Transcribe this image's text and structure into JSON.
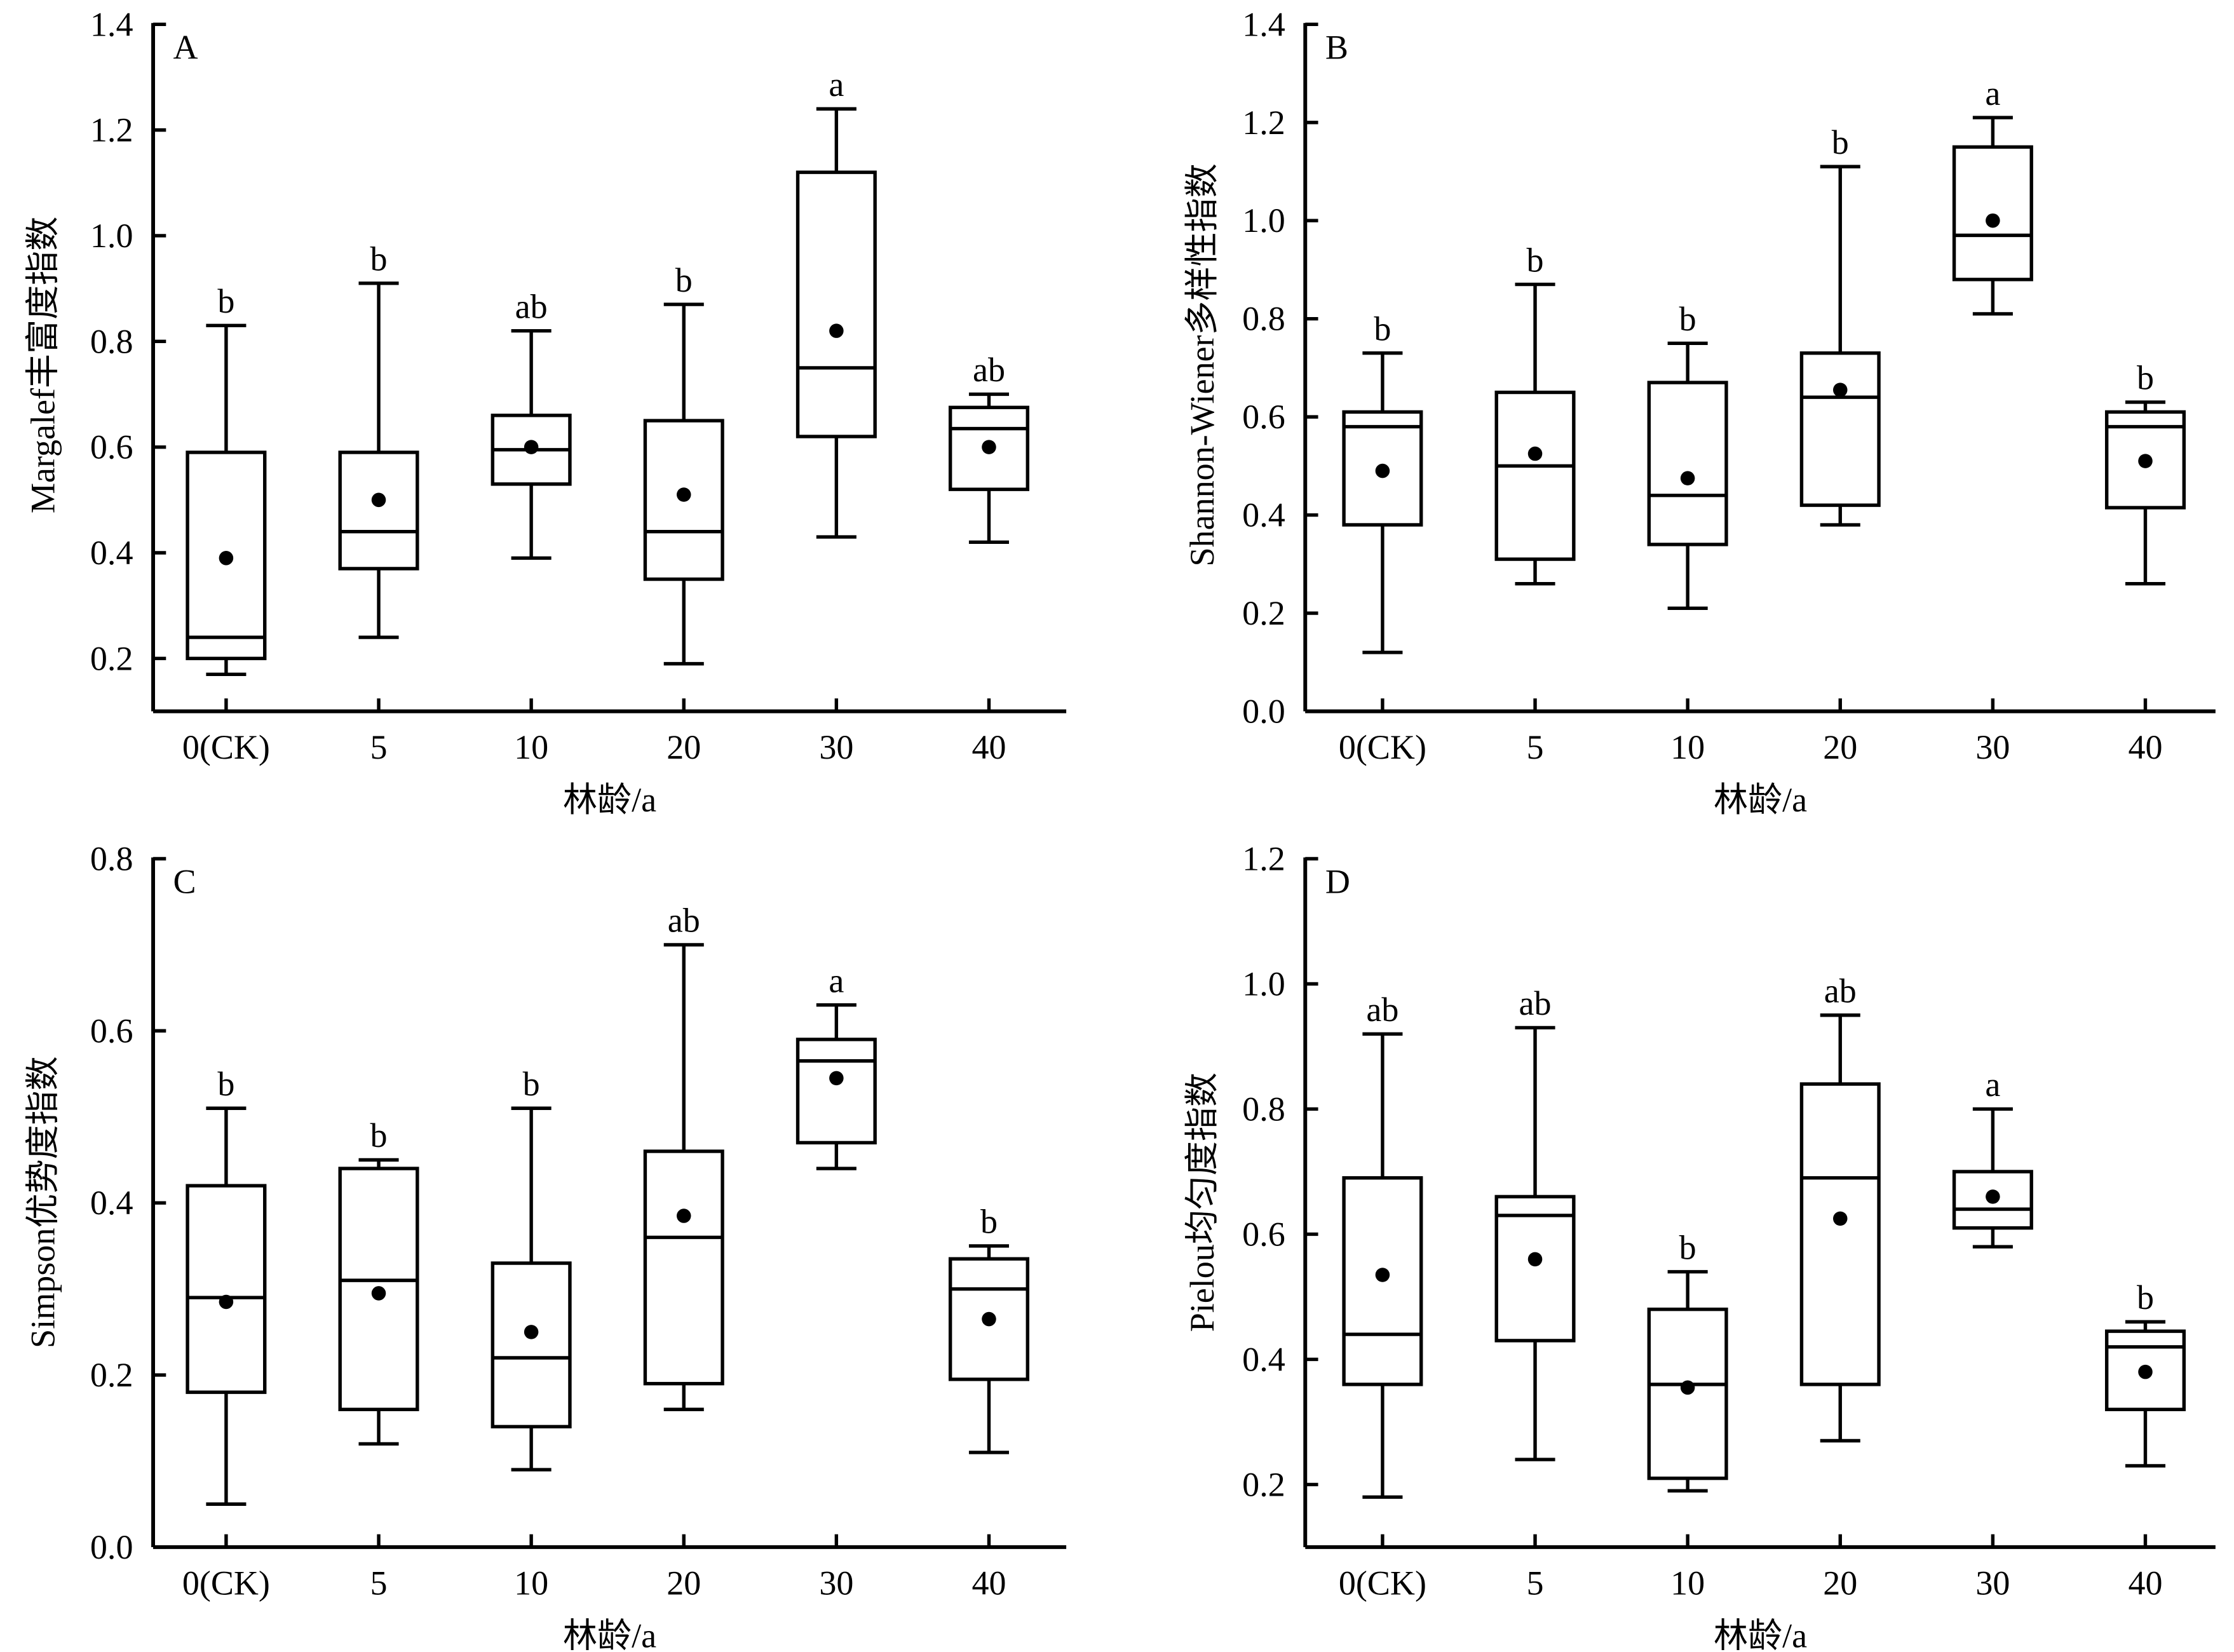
{
  "chart_data": [
    {
      "type": "box",
      "panel_label": "A",
      "ylabel": "Margalef丰富度指数",
      "xlabel": "林龄/a",
      "ylim": [
        0.1,
        1.4
      ],
      "yticks": [
        "0.2",
        "0.4",
        "0.6",
        "0.8",
        "1.0",
        "1.2",
        "1.4"
      ],
      "categories": [
        "0(CK)",
        "5",
        "10",
        "20",
        "30",
        "40"
      ],
      "boxes": [
        {
          "whisker_low": 0.17,
          "q1": 0.2,
          "median": 0.24,
          "q3": 0.59,
          "whisker_high": 0.83,
          "mean": 0.39,
          "letter": "b"
        },
        {
          "whisker_low": 0.24,
          "q1": 0.37,
          "median": 0.44,
          "q3": 0.59,
          "whisker_high": 0.91,
          "mean": 0.5,
          "letter": "b"
        },
        {
          "whisker_low": 0.39,
          "q1": 0.53,
          "median": 0.595,
          "q3": 0.66,
          "whisker_high": 0.82,
          "mean": 0.6,
          "letter": "ab"
        },
        {
          "whisker_low": 0.19,
          "q1": 0.35,
          "median": 0.44,
          "q3": 0.65,
          "whisker_high": 0.87,
          "mean": 0.51,
          "letter": "b"
        },
        {
          "whisker_low": 0.43,
          "q1": 0.62,
          "median": 0.75,
          "q3": 1.12,
          "whisker_high": 1.24,
          "mean": 0.82,
          "letter": "a"
        },
        {
          "whisker_low": 0.42,
          "q1": 0.52,
          "median": 0.635,
          "q3": 0.675,
          "whisker_high": 0.7,
          "mean": 0.6,
          "letter": "ab"
        }
      ]
    },
    {
      "type": "box",
      "panel_label": "B",
      "ylabel": "Shannon-Wiener多样性指数",
      "xlabel": "林龄/a",
      "ylim": [
        0.0,
        1.4
      ],
      "yticks": [
        "0.0",
        "0.2",
        "0.4",
        "0.6",
        "0.8",
        "1.0",
        "1.2",
        "1.4"
      ],
      "categories": [
        "0(CK)",
        "5",
        "10",
        "20",
        "30",
        "40"
      ],
      "boxes": [
        {
          "whisker_low": 0.12,
          "q1": 0.38,
          "median": 0.58,
          "q3": 0.61,
          "whisker_high": 0.73,
          "mean": 0.49,
          "letter": "b"
        },
        {
          "whisker_low": 0.26,
          "q1": 0.31,
          "median": 0.5,
          "q3": 0.65,
          "whisker_high": 0.87,
          "mean": 0.525,
          "letter": "b"
        },
        {
          "whisker_low": 0.21,
          "q1": 0.34,
          "median": 0.44,
          "q3": 0.67,
          "whisker_high": 0.75,
          "mean": 0.475,
          "letter": "b"
        },
        {
          "whisker_low": 0.38,
          "q1": 0.42,
          "median": 0.64,
          "q3": 0.73,
          "whisker_high": 1.11,
          "mean": 0.655,
          "letter": "b"
        },
        {
          "whisker_low": 0.81,
          "q1": 0.88,
          "median": 0.97,
          "q3": 1.15,
          "whisker_high": 1.21,
          "mean": 1.0,
          "letter": "a"
        },
        {
          "whisker_low": 0.26,
          "q1": 0.415,
          "median": 0.58,
          "q3": 0.61,
          "whisker_high": 0.63,
          "mean": 0.51,
          "letter": "b"
        }
      ]
    },
    {
      "type": "box",
      "panel_label": "C",
      "ylabel": "Simpson优势度指数",
      "xlabel": "林龄/a",
      "ylim": [
        0.0,
        0.8
      ],
      "yticks": [
        "0.0",
        "0.2",
        "0.4",
        "0.6",
        "0.8"
      ],
      "categories": [
        "0(CK)",
        "5",
        "10",
        "20",
        "30",
        "40"
      ],
      "boxes": [
        {
          "whisker_low": 0.05,
          "q1": 0.18,
          "median": 0.29,
          "q3": 0.42,
          "whisker_high": 0.51,
          "mean": 0.285,
          "letter": "b"
        },
        {
          "whisker_low": 0.12,
          "q1": 0.16,
          "median": 0.31,
          "q3": 0.44,
          "whisker_high": 0.45,
          "mean": 0.295,
          "letter": "b"
        },
        {
          "whisker_low": 0.09,
          "q1": 0.14,
          "median": 0.22,
          "q3": 0.33,
          "whisker_high": 0.51,
          "mean": 0.25,
          "letter": "b"
        },
        {
          "whisker_low": 0.16,
          "q1": 0.19,
          "median": 0.36,
          "q3": 0.46,
          "whisker_high": 0.7,
          "mean": 0.385,
          "letter": "ab"
        },
        {
          "whisker_low": 0.44,
          "q1": 0.47,
          "median": 0.565,
          "q3": 0.59,
          "whisker_high": 0.63,
          "mean": 0.545,
          "letter": "a"
        },
        {
          "whisker_low": 0.11,
          "q1": 0.195,
          "median": 0.3,
          "q3": 0.335,
          "whisker_high": 0.35,
          "mean": 0.265,
          "letter": "b"
        }
      ]
    },
    {
      "type": "box",
      "panel_label": "D",
      "ylabel": "Pielou均匀度指数",
      "xlabel": "林龄/a",
      "ylim": [
        0.1,
        1.2
      ],
      "yticks": [
        "0.2",
        "0.4",
        "0.6",
        "0.8",
        "1.0",
        "1.2"
      ],
      "categories": [
        "0(CK)",
        "5",
        "10",
        "20",
        "30",
        "40"
      ],
      "boxes": [
        {
          "whisker_low": 0.18,
          "q1": 0.36,
          "median": 0.44,
          "q3": 0.69,
          "whisker_high": 0.92,
          "mean": 0.535,
          "letter": "ab"
        },
        {
          "whisker_low": 0.24,
          "q1": 0.43,
          "median": 0.63,
          "q3": 0.66,
          "whisker_high": 0.93,
          "mean": 0.56,
          "letter": "ab"
        },
        {
          "whisker_low": 0.19,
          "q1": 0.21,
          "median": 0.36,
          "q3": 0.48,
          "whisker_high": 0.54,
          "mean": 0.355,
          "letter": "b"
        },
        {
          "whisker_low": 0.27,
          "q1": 0.36,
          "median": 0.69,
          "q3": 0.84,
          "whisker_high": 0.95,
          "mean": 0.625,
          "letter": "ab"
        },
        {
          "whisker_low": 0.58,
          "q1": 0.61,
          "median": 0.64,
          "q3": 0.7,
          "whisker_high": 0.8,
          "mean": 0.66,
          "letter": "a"
        },
        {
          "whisker_low": 0.23,
          "q1": 0.32,
          "median": 0.42,
          "q3": 0.445,
          "whisker_high": 0.46,
          "mean": 0.38,
          "letter": "b"
        }
      ]
    }
  ]
}
